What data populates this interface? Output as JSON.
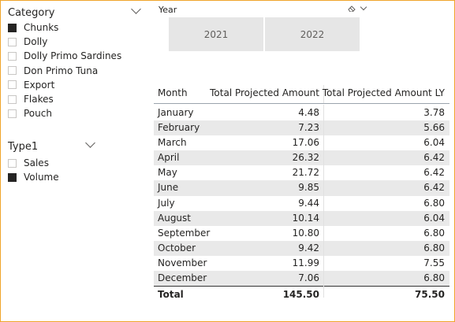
{
  "category_slicer": {
    "title": "Category",
    "items": [
      {
        "label": "Chunks",
        "checked": true
      },
      {
        "label": "Dolly",
        "checked": false
      },
      {
        "label": "Dolly Primo Sardines",
        "checked": false
      },
      {
        "label": "Don Primo Tuna",
        "checked": false
      },
      {
        "label": "Export",
        "checked": false
      },
      {
        "label": "Flakes",
        "checked": false
      },
      {
        "label": "Pouch",
        "checked": false
      }
    ]
  },
  "type_slicer": {
    "title": "Type1",
    "items": [
      {
        "label": "Sales",
        "checked": false
      },
      {
        "label": "Volume",
        "checked": true
      }
    ]
  },
  "year_slicer": {
    "title": "Year",
    "tiles": [
      "2021",
      "2022"
    ],
    "clear_icon": "eraser-icon"
  },
  "table": {
    "headers": [
      "Month",
      "Total Projected Amount",
      "Total Projected Amount LY"
    ],
    "rows": [
      [
        "January",
        "4.48",
        "3.78"
      ],
      [
        "February",
        "7.23",
        "5.66"
      ],
      [
        "March",
        "17.06",
        "6.04"
      ],
      [
        "April",
        "26.32",
        "6.42"
      ],
      [
        "May",
        "21.72",
        "6.42"
      ],
      [
        "June",
        "9.85",
        "6.42"
      ],
      [
        "July",
        "9.44",
        "6.80"
      ],
      [
        "August",
        "10.14",
        "6.04"
      ],
      [
        "September",
        "10.80",
        "6.80"
      ],
      [
        "October",
        "9.42",
        "6.80"
      ],
      [
        "November",
        "11.99",
        "7.55"
      ],
      [
        "December",
        "7.06",
        "6.80"
      ]
    ],
    "total": [
      "Total",
      "145.50",
      "75.50"
    ]
  },
  "colors": {
    "frame_border": "#f0a52a",
    "alt_row": "#e9e9e9",
    "tile": "#e6e6e6",
    "checked": "#252423"
  }
}
